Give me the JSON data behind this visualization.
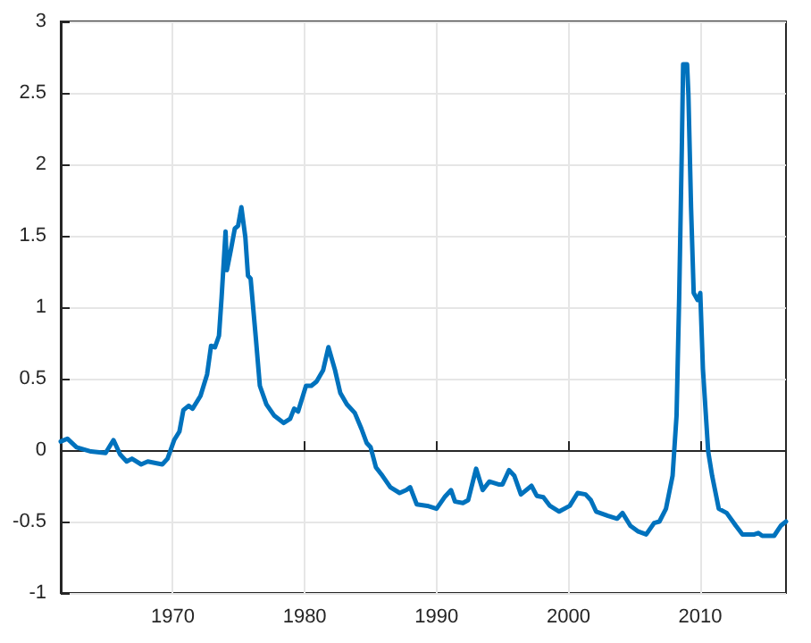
{
  "chart_data": {
    "type": "line",
    "grid": true,
    "marker": "none",
    "line_style": "solid",
    "xlim": [
      1961.5,
      2016.5
    ],
    "xticks": [
      1970,
      1980,
      1990,
      2000,
      2010
    ],
    "ylim": [
      -1,
      3
    ],
    "yticks": [
      -1,
      -0.5,
      0,
      0.5,
      1,
      1.5,
      2,
      2.5,
      3
    ],
    "series": [
      {
        "color": "#0072bd",
        "x": [
          1961.5,
          1962.0,
          1962.7,
          1963.8,
          1964.9,
          1965.5,
          1966.0,
          1966.5,
          1966.9,
          1967.6,
          1968.1,
          1969.2,
          1969.6,
          1970.1,
          1970.5,
          1970.8,
          1971.2,
          1971.5,
          1972.1,
          1972.6,
          1972.9,
          1973.2,
          1973.5,
          1973.7,
          1974.0,
          1974.1,
          1974.4,
          1974.7,
          1974.95,
          1975.2,
          1975.5,
          1975.7,
          1975.9,
          1976.3,
          1976.6,
          1977.1,
          1977.7,
          1978.4,
          1978.9,
          1979.2,
          1979.5,
          1980.1,
          1980.5,
          1980.9,
          1981.4,
          1981.8,
          1982.3,
          1982.7,
          1983.2,
          1983.8,
          1984.3,
          1984.7,
          1985.0,
          1985.4,
          1985.9,
          1986.5,
          1987.2,
          1987.7,
          1988.0,
          1988.5,
          1989.3,
          1990.0,
          1990.6,
          1991.1,
          1991.4,
          1992.0,
          1992.4,
          1993.0,
          1993.5,
          1994.0,
          1994.7,
          1995.0,
          1995.5,
          1995.9,
          1996.4,
          1997.2,
          1997.6,
          1998.1,
          1998.6,
          1999.3,
          2000.1,
          2000.7,
          2001.3,
          2001.7,
          2002.1,
          2003.0,
          2003.7,
          2004.1,
          2004.7,
          2005.3,
          2005.9,
          2006.5,
          2006.9,
          2007.4,
          2007.9,
          2008.2,
          2008.4,
          2008.6,
          2008.7,
          2009.0,
          2009.1,
          2009.3,
          2009.5,
          2009.8,
          2010.0,
          2010.2,
          2010.6,
          2010.9,
          2011.4,
          2012.0,
          2012.7,
          2013.2,
          2014.1,
          2014.4,
          2014.7,
          2015.6,
          2016.1,
          2016.5
        ],
        "values": [
          0.06,
          0.08,
          0.02,
          -0.01,
          -0.02,
          0.07,
          -0.03,
          -0.08,
          -0.06,
          -0.1,
          -0.08,
          -0.1,
          -0.06,
          0.07,
          0.13,
          0.28,
          0.31,
          0.29,
          0.38,
          0.53,
          0.73,
          0.72,
          0.8,
          1.07,
          1.53,
          1.26,
          1.4,
          1.55,
          1.57,
          1.7,
          1.49,
          1.22,
          1.2,
          0.78,
          0.45,
          0.32,
          0.24,
          0.19,
          0.22,
          0.29,
          0.27,
          0.45,
          0.45,
          0.48,
          0.56,
          0.72,
          0.56,
          0.4,
          0.32,
          0.26,
          0.15,
          0.05,
          0.02,
          -0.12,
          -0.18,
          -0.26,
          -0.3,
          -0.28,
          -0.26,
          -0.38,
          -0.39,
          -0.41,
          -0.33,
          -0.28,
          -0.36,
          -0.37,
          -0.35,
          -0.13,
          -0.28,
          -0.22,
          -0.24,
          -0.24,
          -0.14,
          -0.18,
          -0.31,
          -0.25,
          -0.32,
          -0.33,
          -0.39,
          -0.43,
          -0.39,
          -0.3,
          -0.31,
          -0.35,
          -0.43,
          -0.46,
          -0.48,
          -0.44,
          -0.53,
          -0.57,
          -0.59,
          -0.51,
          -0.5,
          -0.41,
          -0.18,
          0.24,
          1.07,
          2.11,
          2.7,
          2.7,
          2.49,
          1.7,
          1.1,
          1.05,
          1.1,
          0.57,
          -0.01,
          -0.18,
          -0.41,
          -0.44,
          -0.53,
          -0.59,
          -0.59,
          -0.58,
          -0.6,
          -0.6,
          -0.53,
          -0.5
        ]
      }
    ]
  }
}
